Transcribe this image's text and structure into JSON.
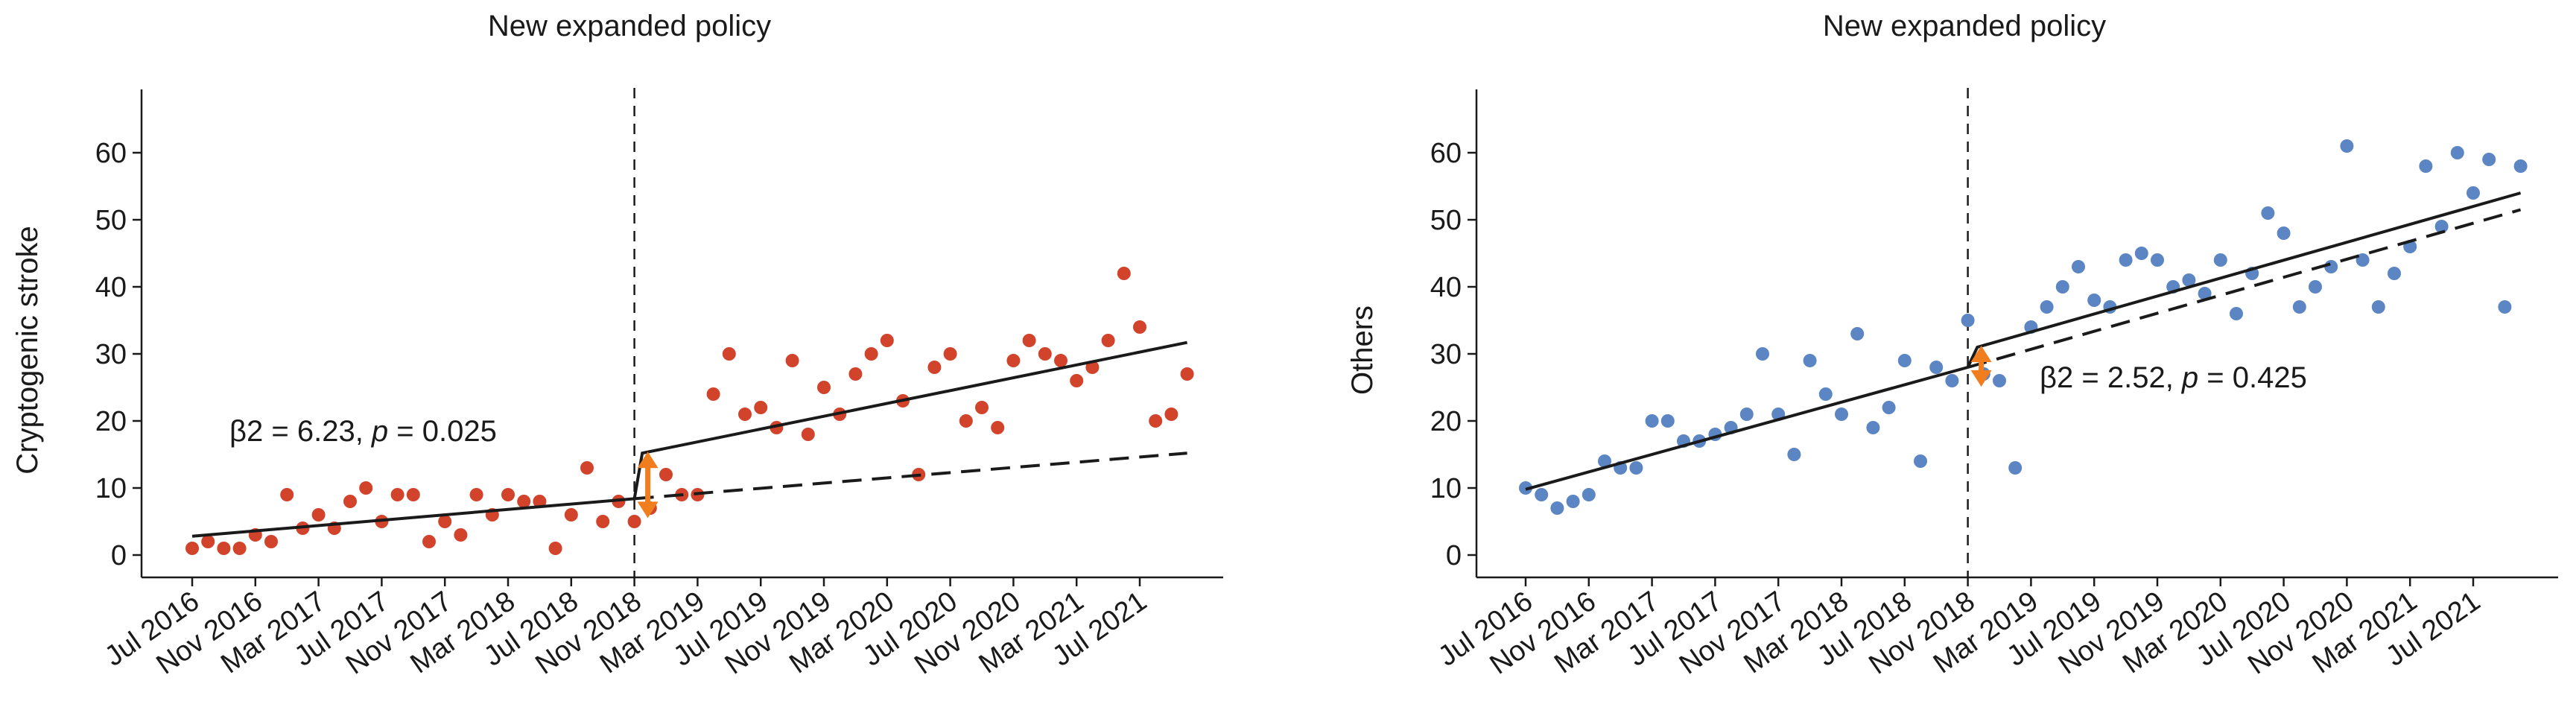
{
  "panels": [
    {
      "title": "New expanded policy",
      "ylabel": "Cryptogenic stroke",
      "annotation": {
        "prefix": "β2 = 6.23, ",
        "p_symbol": "p",
        "suffix": " = 0.025"
      }
    },
    {
      "title": "New expanded policy",
      "ylabel": "Others",
      "annotation": {
        "prefix": "β2 = 2.52, ",
        "p_symbol": "p",
        "suffix": " = 0.425"
      }
    }
  ],
  "chart_data": [
    {
      "type": "scatter",
      "title": "New expanded policy",
      "xlabel": "",
      "ylabel": "Cryptogenic stroke",
      "ylim": [
        0,
        60
      ],
      "xlim": [
        0,
        66
      ],
      "yticks": [
        0,
        10,
        20,
        30,
        40,
        50,
        60
      ],
      "x_tick_positions": [
        0,
        4,
        8,
        12,
        16,
        20,
        24,
        28,
        32,
        36,
        40,
        44,
        48,
        52,
        56,
        60
      ],
      "x_tick_labels": [
        "Jul 2016",
        "Nov 2016",
        "Mar 2017",
        "Jul 2017",
        "Nov 2017",
        "Mar 2018",
        "Jul 2018",
        "Nov 2018",
        "Mar 2019",
        "Jul 2019",
        "Nov 2019",
        "Mar 2020",
        "Jul 2020",
        "Nov 2020",
        "Mar 2021",
        "Jul 2021"
      ],
      "point_color": "#d2432c",
      "intervention_x": 28,
      "intervention_style": "dashed vertical line",
      "points": [
        [
          0,
          1
        ],
        [
          1,
          2
        ],
        [
          2,
          1
        ],
        [
          3,
          1
        ],
        [
          4,
          3
        ],
        [
          5,
          2
        ],
        [
          6,
          9
        ],
        [
          7,
          4
        ],
        [
          8,
          6
        ],
        [
          9,
          4
        ],
        [
          10,
          8
        ],
        [
          11,
          10
        ],
        [
          12,
          5
        ],
        [
          13,
          9
        ],
        [
          14,
          9
        ],
        [
          15,
          2
        ],
        [
          16,
          5
        ],
        [
          17,
          3
        ],
        [
          18,
          9
        ],
        [
          19,
          6
        ],
        [
          20,
          9
        ],
        [
          21,
          8
        ],
        [
          22,
          8
        ],
        [
          23,
          1
        ],
        [
          24,
          6
        ],
        [
          25,
          13
        ],
        [
          26,
          5
        ],
        [
          27,
          8
        ],
        [
          28,
          5
        ],
        [
          29,
          7
        ],
        [
          30,
          12
        ],
        [
          31,
          9
        ],
        [
          32,
          9
        ],
        [
          33,
          24
        ],
        [
          34,
          30
        ],
        [
          35,
          21
        ],
        [
          36,
          22
        ],
        [
          37,
          19
        ],
        [
          38,
          29
        ],
        [
          39,
          18
        ],
        [
          40,
          25
        ],
        [
          41,
          21
        ],
        [
          42,
          27
        ],
        [
          43,
          30
        ],
        [
          44,
          32
        ],
        [
          45,
          23
        ],
        [
          46,
          12
        ],
        [
          47,
          28
        ],
        [
          48,
          30
        ],
        [
          49,
          20
        ],
        [
          50,
          22
        ],
        [
          51,
          19
        ],
        [
          52,
          29
        ],
        [
          53,
          32
        ],
        [
          54,
          30
        ],
        [
          55,
          29
        ],
        [
          56,
          26
        ],
        [
          57,
          28
        ],
        [
          58,
          32
        ],
        [
          59,
          42
        ],
        [
          60,
          34
        ],
        [
          61,
          20
        ],
        [
          62,
          21
        ],
        [
          63,
          27
        ]
      ],
      "fitted_pre": [
        [
          0,
          2.8
        ],
        [
          28,
          8.4
        ]
      ],
      "fitted_post": [
        [
          28,
          8.4
        ],
        [
          28.5,
          15.2
        ],
        [
          63,
          31.7
        ]
      ],
      "counterfactual": [
        [
          28,
          8.4
        ],
        [
          63,
          15.2
        ]
      ],
      "arrow_color": "#f07d1e",
      "annotation": "β2 = 6.23, p = 0.025"
    },
    {
      "type": "scatter",
      "title": "New expanded policy",
      "xlabel": "",
      "ylabel": "Others",
      "ylim": [
        0,
        60
      ],
      "xlim": [
        0,
        66
      ],
      "yticks": [
        0,
        10,
        20,
        30,
        40,
        50,
        60
      ],
      "x_tick_positions": [
        0,
        4,
        8,
        12,
        16,
        20,
        24,
        28,
        32,
        36,
        40,
        44,
        48,
        52,
        56,
        60
      ],
      "x_tick_labels": [
        "Jul 2016",
        "Nov 2016",
        "Mar 2017",
        "Jul 2017",
        "Nov 2017",
        "Mar 2018",
        "Jul 2018",
        "Nov 2018",
        "Mar 2019",
        "Jul 2019",
        "Nov 2019",
        "Mar 2020",
        "Jul 2020",
        "Nov 2020",
        "Mar 2021",
        "Jul 2021"
      ],
      "point_color": "#5b85c3",
      "intervention_x": 28,
      "intervention_style": "dashed vertical line",
      "points": [
        [
          0,
          10
        ],
        [
          1,
          9
        ],
        [
          2,
          7
        ],
        [
          3,
          8
        ],
        [
          4,
          9
        ],
        [
          5,
          14
        ],
        [
          6,
          13
        ],
        [
          7,
          13
        ],
        [
          8,
          20
        ],
        [
          9,
          20
        ],
        [
          10,
          17
        ],
        [
          11,
          17
        ],
        [
          12,
          18
        ],
        [
          13,
          19
        ],
        [
          14,
          21
        ],
        [
          15,
          30
        ],
        [
          16,
          21
        ],
        [
          17,
          15
        ],
        [
          18,
          29
        ],
        [
          19,
          24
        ],
        [
          20,
          21
        ],
        [
          21,
          33
        ],
        [
          22,
          19
        ],
        [
          23,
          22
        ],
        [
          24,
          29
        ],
        [
          25,
          14
        ],
        [
          26,
          28
        ],
        [
          27,
          26
        ],
        [
          28,
          35
        ],
        [
          29,
          27
        ],
        [
          30,
          26
        ],
        [
          31,
          13
        ],
        [
          32,
          34
        ],
        [
          33,
          37
        ],
        [
          34,
          40
        ],
        [
          35,
          43
        ],
        [
          36,
          38
        ],
        [
          37,
          37
        ],
        [
          38,
          44
        ],
        [
          39,
          45
        ],
        [
          40,
          44
        ],
        [
          41,
          40
        ],
        [
          42,
          41
        ],
        [
          43,
          39
        ],
        [
          44,
          44
        ],
        [
          45,
          36
        ],
        [
          46,
          42
        ],
        [
          47,
          51
        ],
        [
          48,
          48
        ],
        [
          49,
          37
        ],
        [
          50,
          40
        ],
        [
          51,
          43
        ],
        [
          52,
          61
        ],
        [
          53,
          44
        ],
        [
          54,
          37
        ],
        [
          55,
          42
        ],
        [
          56,
          46
        ],
        [
          57,
          58
        ],
        [
          58,
          49
        ],
        [
          59,
          60
        ],
        [
          60,
          54
        ],
        [
          61,
          59
        ],
        [
          62,
          37
        ],
        [
          63,
          58
        ]
      ],
      "fitted_pre": [
        [
          0,
          9.8
        ],
        [
          28,
          28.0
        ]
      ],
      "fitted_post": [
        [
          28,
          28.0
        ],
        [
          28.6,
          31.0
        ],
        [
          63,
          54.0
        ]
      ],
      "counterfactual": [
        [
          28,
          28.0
        ],
        [
          63,
          51.5
        ]
      ],
      "arrow_color": "#f07d1e",
      "annotation": "β2 = 2.52, p = 0.425"
    }
  ]
}
